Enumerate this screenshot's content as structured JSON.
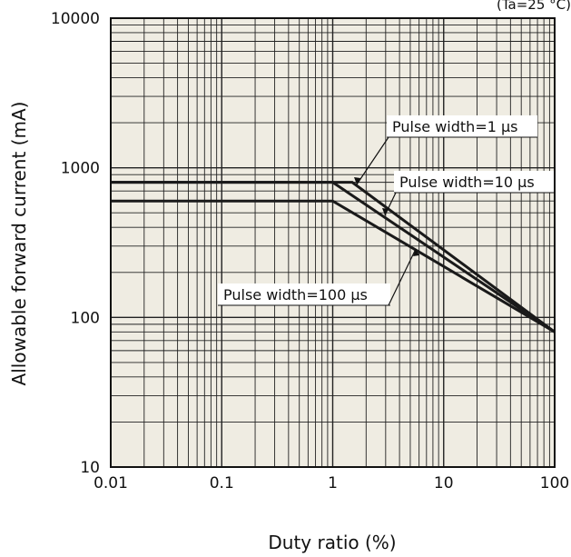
{
  "chart_data": {
    "type": "line",
    "title": "",
    "condition": "(Ta=25 °C)",
    "xlabel": "Duty ratio (%)",
    "ylabel": "Allowable forward current (mA)",
    "xscale": "log",
    "yscale": "log",
    "xlim": [
      0.01,
      100
    ],
    "ylim": [
      10,
      10000
    ],
    "grid": true,
    "x_ticks": [
      "0.01",
      "0.1",
      "1",
      "10",
      "100"
    ],
    "y_ticks": [
      "10",
      "100",
      "1000",
      "10000"
    ],
    "series": [
      {
        "name": "Pulse width=1 μs",
        "x": [
          0.01,
          1.5,
          100
        ],
        "y": [
          800,
          800,
          80
        ]
      },
      {
        "name": "Pulse width=10 μs",
        "x": [
          0.01,
          1.0,
          100
        ],
        "y": [
          800,
          800,
          80
        ]
      },
      {
        "name": "Pulse width=100 μs",
        "x": [
          0.01,
          1.0,
          100
        ],
        "y": [
          600,
          600,
          80
        ]
      }
    ],
    "annotations": [
      "Pulse width=1 μs",
      "Pulse width=10 μs",
      "Pulse width=100 μs"
    ]
  }
}
